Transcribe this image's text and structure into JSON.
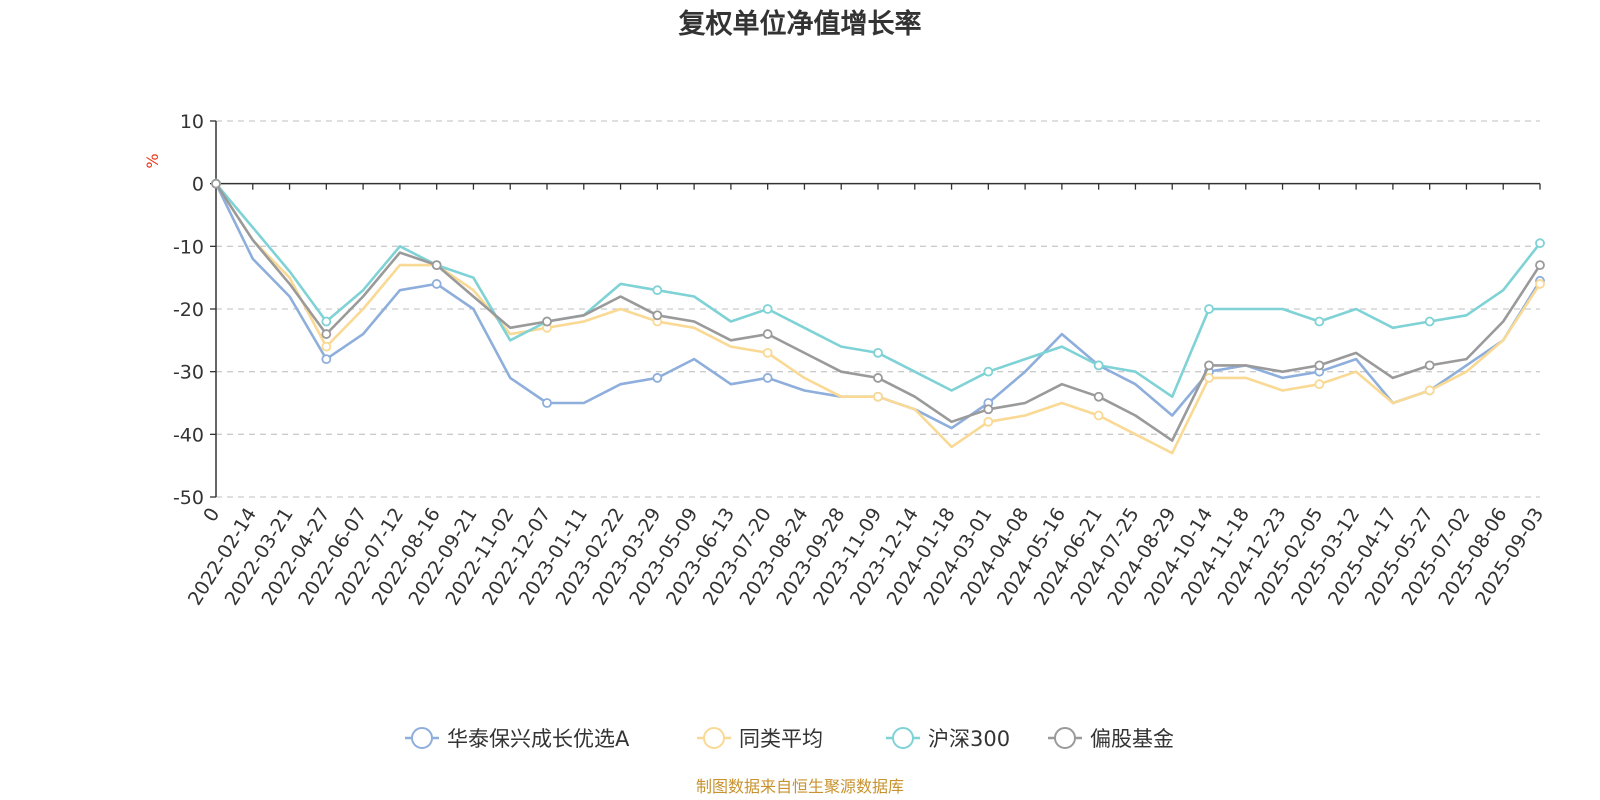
{
  "chart_data": {
    "type": "line",
    "title": "复权单位净值增长率",
    "ylabel": "%",
    "ylim": [
      -50,
      10
    ],
    "yticks": [
      10,
      0,
      -10,
      -20,
      -30,
      -40,
      -50
    ],
    "grid": true,
    "legend_position": "bottom",
    "categories": [
      "0",
      "2022-02-14",
      "2022-03-21",
      "2022-04-27",
      "2022-06-07",
      "2022-07-12",
      "2022-08-16",
      "2022-09-21",
      "2022-11-02",
      "2022-12-07",
      "2023-01-11",
      "2023-02-22",
      "2023-03-29",
      "2023-05-09",
      "2023-06-13",
      "2023-07-20",
      "2023-08-24",
      "2023-09-28",
      "2023-11-09",
      "2023-12-14",
      "2024-01-18",
      "2024-03-01",
      "2024-04-08",
      "2024-05-16",
      "2024-06-21",
      "2024-07-25",
      "2024-08-29",
      "2024-10-14",
      "2024-11-18",
      "2024-12-23",
      "2025-02-05",
      "2025-03-12",
      "2025-04-17",
      "2025-05-27",
      "2025-07-02",
      "2025-08-06",
      "2025-09-03"
    ],
    "series": [
      {
        "name": "华泰保兴成长优选A",
        "color": "#8eaedb",
        "values": [
          0,
          -12,
          -18,
          -28,
          -24,
          -17,
          -16,
          -20,
          -31,
          -35,
          -35,
          -32,
          -31,
          -28,
          -32,
          -31,
          -33,
          -34,
          -34,
          -36,
          -39,
          -35,
          -30,
          -24,
          -29,
          -32,
          -37,
          -30,
          -29,
          -31,
          -30,
          -28,
          -35,
          -33,
          -29,
          -25,
          -15.5
        ]
      },
      {
        "name": "同类平均",
        "color": "#f9d994",
        "values": [
          0,
          -9,
          -15,
          -26,
          -20,
          -13,
          -13,
          -17,
          -24,
          -23,
          -22,
          -20,
          -22,
          -23,
          -26,
          -27,
          -31,
          -34,
          -34,
          -36,
          -42,
          -38,
          -37,
          -35,
          -37,
          -40,
          -43,
          -31,
          -31,
          -33,
          -32,
          -30,
          -35,
          -33,
          -30,
          -25,
          -16
        ]
      },
      {
        "name": "沪深300",
        "color": "#7fd2d5",
        "values": [
          0,
          -7,
          -14,
          -22,
          -17,
          -10,
          -13,
          -15,
          -25,
          -22,
          -21,
          -16,
          -17,
          -18,
          -22,
          -20,
          -23,
          -26,
          -27,
          -30,
          -33,
          -30,
          -28,
          -26,
          -29,
          -30,
          -34,
          -20,
          -20,
          -20,
          -22,
          -20,
          -23,
          -22,
          -21,
          -17,
          -9.5
        ]
      },
      {
        "name": "偏股基金",
        "color": "#9a9a9a",
        "values": [
          0,
          -9,
          -16,
          -24,
          -18,
          -11,
          -13,
          -18,
          -23,
          -22,
          -21,
          -18,
          -21,
          -22,
          -25,
          -24,
          -27,
          -30,
          -31,
          -34,
          -38,
          -36,
          -35,
          -32,
          -34,
          -37,
          -41,
          -29,
          -29,
          -30,
          -29,
          -27,
          -31,
          -29,
          -28,
          -22,
          -13
        ]
      }
    ]
  },
  "source": "制图数据来自恒生聚源数据库"
}
